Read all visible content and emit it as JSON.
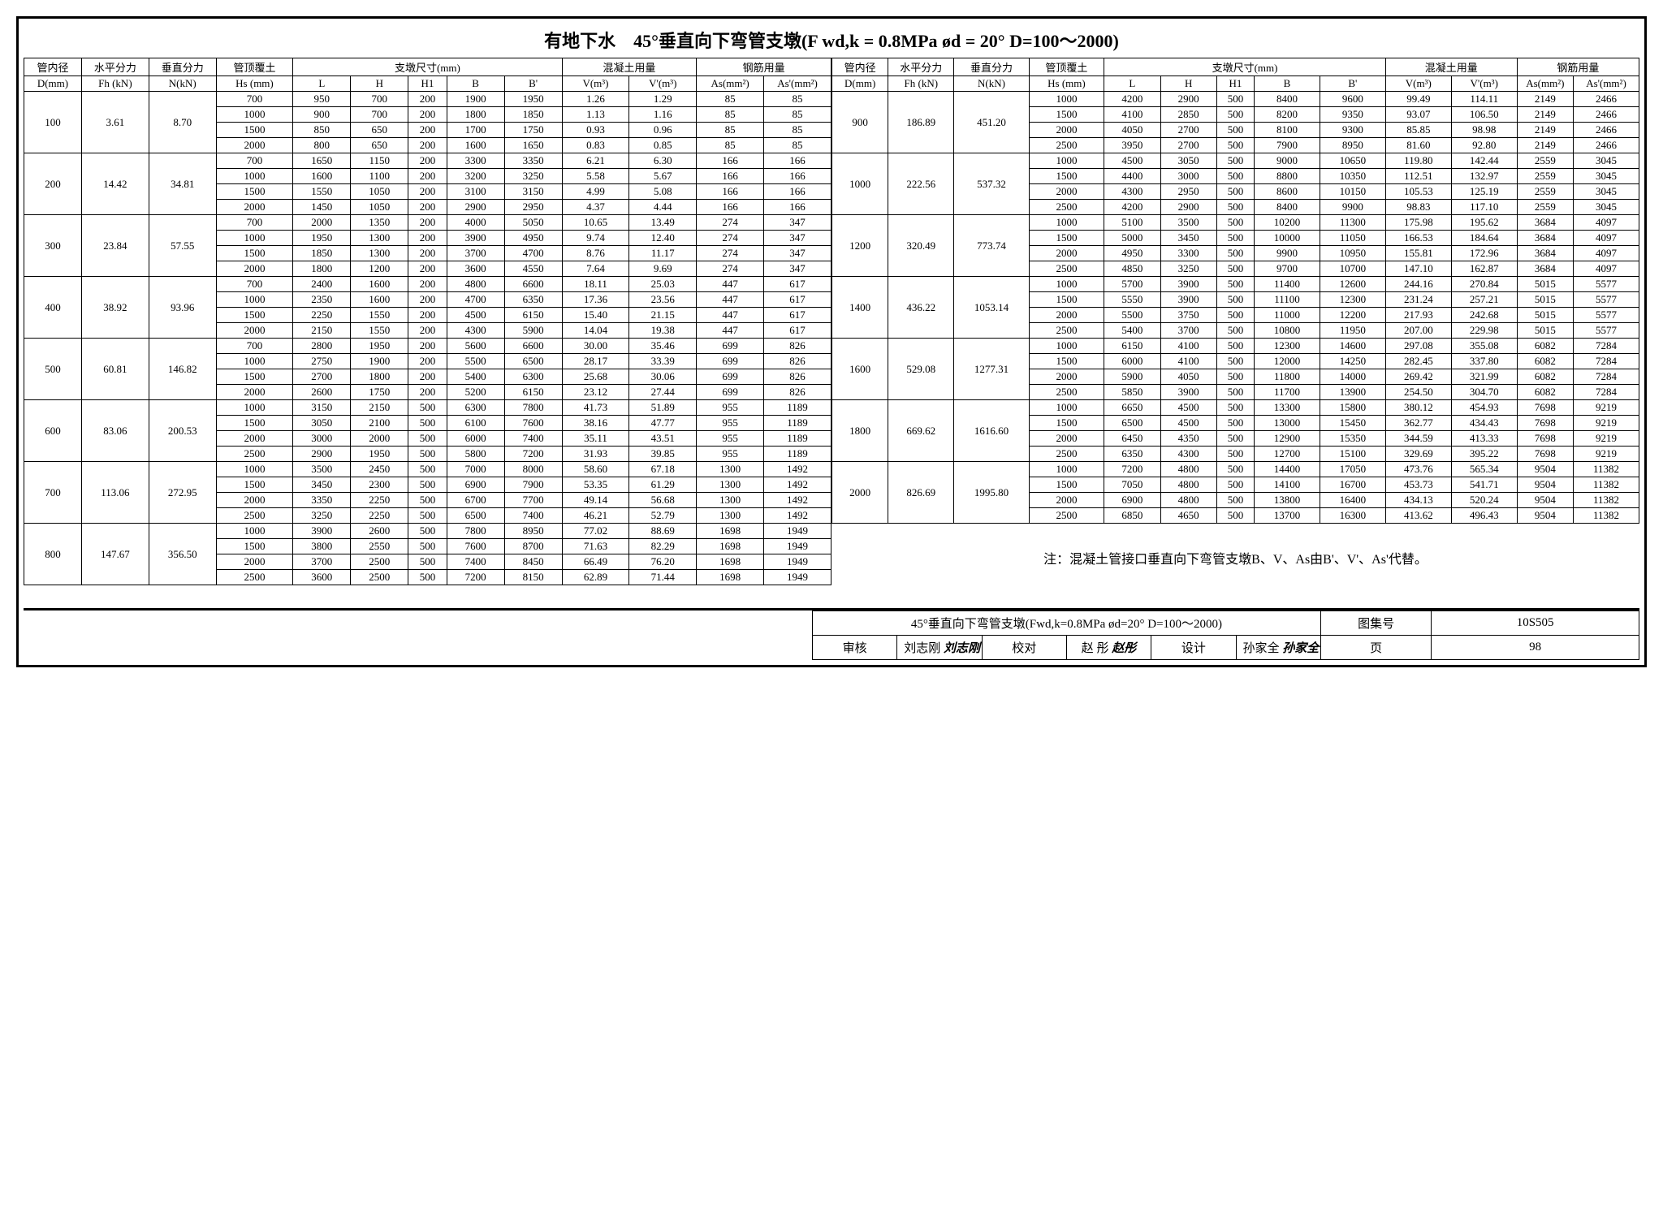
{
  "title": "有地下水　45°垂直向下弯管支墩(F wd,k = 0.8MPa ød = 20° D=100～2000)",
  "headers": {
    "c1": "管内径",
    "c1u": "D(mm)",
    "c2": "水平分力",
    "c2u": "Fh (kN)",
    "c3": "垂直分力",
    "c3u": "N(kN)",
    "c4": "管顶覆土",
    "c4u": "Hs (mm)",
    "c5": "支墩尺寸(mm)",
    "L": "L",
    "H": "H",
    "H1": "H1",
    "B": "B",
    "Bp": "B'",
    "c6": "混凝土用量",
    "V": "V(m³)",
    "Vp": "V'(m³)",
    "c7": "钢筋用量",
    "As": "As(mm²)",
    "Asp": "As'(mm²)"
  },
  "left": [
    {
      "D": "100",
      "Fh": "3.61",
      "N": "8.70",
      "rows": [
        [
          "700",
          "950",
          "700",
          "200",
          "1900",
          "1950",
          "1.26",
          "1.29",
          "85",
          "85"
        ],
        [
          "1000",
          "900",
          "700",
          "200",
          "1800",
          "1850",
          "1.13",
          "1.16",
          "85",
          "85"
        ],
        [
          "1500",
          "850",
          "650",
          "200",
          "1700",
          "1750",
          "0.93",
          "0.96",
          "85",
          "85"
        ],
        [
          "2000",
          "800",
          "650",
          "200",
          "1600",
          "1650",
          "0.83",
          "0.85",
          "85",
          "85"
        ]
      ]
    },
    {
      "D": "200",
      "Fh": "14.42",
      "N": "34.81",
      "rows": [
        [
          "700",
          "1650",
          "1150",
          "200",
          "3300",
          "3350",
          "6.21",
          "6.30",
          "166",
          "166"
        ],
        [
          "1000",
          "1600",
          "1100",
          "200",
          "3200",
          "3250",
          "5.58",
          "5.67",
          "166",
          "166"
        ],
        [
          "1500",
          "1550",
          "1050",
          "200",
          "3100",
          "3150",
          "4.99",
          "5.08",
          "166",
          "166"
        ],
        [
          "2000",
          "1450",
          "1050",
          "200",
          "2900",
          "2950",
          "4.37",
          "4.44",
          "166",
          "166"
        ]
      ]
    },
    {
      "D": "300",
      "Fh": "23.84",
      "N": "57.55",
      "rows": [
        [
          "700",
          "2000",
          "1350",
          "200",
          "4000",
          "5050",
          "10.65",
          "13.49",
          "274",
          "347"
        ],
        [
          "1000",
          "1950",
          "1300",
          "200",
          "3900",
          "4950",
          "9.74",
          "12.40",
          "274",
          "347"
        ],
        [
          "1500",
          "1850",
          "1300",
          "200",
          "3700",
          "4700",
          "8.76",
          "11.17",
          "274",
          "347"
        ],
        [
          "2000",
          "1800",
          "1200",
          "200",
          "3600",
          "4550",
          "7.64",
          "9.69",
          "274",
          "347"
        ]
      ]
    },
    {
      "D": "400",
      "Fh": "38.92",
      "N": "93.96",
      "rows": [
        [
          "700",
          "2400",
          "1600",
          "200",
          "4800",
          "6600",
          "18.11",
          "25.03",
          "447",
          "617"
        ],
        [
          "1000",
          "2350",
          "1600",
          "200",
          "4700",
          "6350",
          "17.36",
          "23.56",
          "447",
          "617"
        ],
        [
          "1500",
          "2250",
          "1550",
          "200",
          "4500",
          "6150",
          "15.40",
          "21.15",
          "447",
          "617"
        ],
        [
          "2000",
          "2150",
          "1550",
          "200",
          "4300",
          "5900",
          "14.04",
          "19.38",
          "447",
          "617"
        ]
      ]
    },
    {
      "D": "500",
      "Fh": "60.81",
      "N": "146.82",
      "rows": [
        [
          "700",
          "2800",
          "1950",
          "200",
          "5600",
          "6600",
          "30.00",
          "35.46",
          "699",
          "826"
        ],
        [
          "1000",
          "2750",
          "1900",
          "200",
          "5500",
          "6500",
          "28.17",
          "33.39",
          "699",
          "826"
        ],
        [
          "1500",
          "2700",
          "1800",
          "200",
          "5400",
          "6300",
          "25.68",
          "30.06",
          "699",
          "826"
        ],
        [
          "2000",
          "2600",
          "1750",
          "200",
          "5200",
          "6150",
          "23.12",
          "27.44",
          "699",
          "826"
        ]
      ]
    },
    {
      "D": "600",
      "Fh": "83.06",
      "N": "200.53",
      "rows": [
        [
          "1000",
          "3150",
          "2150",
          "500",
          "6300",
          "7800",
          "41.73",
          "51.89",
          "955",
          "1189"
        ],
        [
          "1500",
          "3050",
          "2100",
          "500",
          "6100",
          "7600",
          "38.16",
          "47.77",
          "955",
          "1189"
        ],
        [
          "2000",
          "3000",
          "2000",
          "500",
          "6000",
          "7400",
          "35.11",
          "43.51",
          "955",
          "1189"
        ],
        [
          "2500",
          "2900",
          "1950",
          "500",
          "5800",
          "7200",
          "31.93",
          "39.85",
          "955",
          "1189"
        ]
      ]
    },
    {
      "D": "700",
      "Fh": "113.06",
      "N": "272.95",
      "rows": [
        [
          "1000",
          "3500",
          "2450",
          "500",
          "7000",
          "8000",
          "58.60",
          "67.18",
          "1300",
          "1492"
        ],
        [
          "1500",
          "3450",
          "2300",
          "500",
          "6900",
          "7900",
          "53.35",
          "61.29",
          "1300",
          "1492"
        ],
        [
          "2000",
          "3350",
          "2250",
          "500",
          "6700",
          "7700",
          "49.14",
          "56.68",
          "1300",
          "1492"
        ],
        [
          "2500",
          "3250",
          "2250",
          "500",
          "6500",
          "7400",
          "46.21",
          "52.79",
          "1300",
          "1492"
        ]
      ]
    },
    {
      "D": "800",
      "Fh": "147.67",
      "N": "356.50",
      "rows": [
        [
          "1000",
          "3900",
          "2600",
          "500",
          "7800",
          "8950",
          "77.02",
          "88.69",
          "1698",
          "1949"
        ],
        [
          "1500",
          "3800",
          "2550",
          "500",
          "7600",
          "8700",
          "71.63",
          "82.29",
          "1698",
          "1949"
        ],
        [
          "2000",
          "3700",
          "2500",
          "500",
          "7400",
          "8450",
          "66.49",
          "76.20",
          "1698",
          "1949"
        ],
        [
          "2500",
          "3600",
          "2500",
          "500",
          "7200",
          "8150",
          "62.89",
          "71.44",
          "1698",
          "1949"
        ]
      ]
    }
  ],
  "right": [
    {
      "D": "900",
      "Fh": "186.89",
      "N": "451.20",
      "rows": [
        [
          "1000",
          "4200",
          "2900",
          "500",
          "8400",
          "9600",
          "99.49",
          "114.11",
          "2149",
          "2466"
        ],
        [
          "1500",
          "4100",
          "2850",
          "500",
          "8200",
          "9350",
          "93.07",
          "106.50",
          "2149",
          "2466"
        ],
        [
          "2000",
          "4050",
          "2700",
          "500",
          "8100",
          "9300",
          "85.85",
          "98.98",
          "2149",
          "2466"
        ],
        [
          "2500",
          "3950",
          "2700",
          "500",
          "7900",
          "8950",
          "81.60",
          "92.80",
          "2149",
          "2466"
        ]
      ]
    },
    {
      "D": "1000",
      "Fh": "222.56",
      "N": "537.32",
      "rows": [
        [
          "1000",
          "4500",
          "3050",
          "500",
          "9000",
          "10650",
          "119.80",
          "142.44",
          "2559",
          "3045"
        ],
        [
          "1500",
          "4400",
          "3000",
          "500",
          "8800",
          "10350",
          "112.51",
          "132.97",
          "2559",
          "3045"
        ],
        [
          "2000",
          "4300",
          "2950",
          "500",
          "8600",
          "10150",
          "105.53",
          "125.19",
          "2559",
          "3045"
        ],
        [
          "2500",
          "4200",
          "2900",
          "500",
          "8400",
          "9900",
          "98.83",
          "117.10",
          "2559",
          "3045"
        ]
      ]
    },
    {
      "D": "1200",
      "Fh": "320.49",
      "N": "773.74",
      "rows": [
        [
          "1000",
          "5100",
          "3500",
          "500",
          "10200",
          "11300",
          "175.98",
          "195.62",
          "3684",
          "4097"
        ],
        [
          "1500",
          "5000",
          "3450",
          "500",
          "10000",
          "11050",
          "166.53",
          "184.64",
          "3684",
          "4097"
        ],
        [
          "2000",
          "4950",
          "3300",
          "500",
          "9900",
          "10950",
          "155.81",
          "172.96",
          "3684",
          "4097"
        ],
        [
          "2500",
          "4850",
          "3250",
          "500",
          "9700",
          "10700",
          "147.10",
          "162.87",
          "3684",
          "4097"
        ]
      ]
    },
    {
      "D": "1400",
      "Fh": "436.22",
      "N": "1053.14",
      "rows": [
        [
          "1000",
          "5700",
          "3900",
          "500",
          "11400",
          "12600",
          "244.16",
          "270.84",
          "5015",
          "5577"
        ],
        [
          "1500",
          "5550",
          "3900",
          "500",
          "11100",
          "12300",
          "231.24",
          "257.21",
          "5015",
          "5577"
        ],
        [
          "2000",
          "5500",
          "3750",
          "500",
          "11000",
          "12200",
          "217.93",
          "242.68",
          "5015",
          "5577"
        ],
        [
          "2500",
          "5400",
          "3700",
          "500",
          "10800",
          "11950",
          "207.00",
          "229.98",
          "5015",
          "5577"
        ]
      ]
    },
    {
      "D": "1600",
      "Fh": "529.08",
      "N": "1277.31",
      "rows": [
        [
          "1000",
          "6150",
          "4100",
          "500",
          "12300",
          "14600",
          "297.08",
          "355.08",
          "6082",
          "7284"
        ],
        [
          "1500",
          "6000",
          "4100",
          "500",
          "12000",
          "14250",
          "282.45",
          "337.80",
          "6082",
          "7284"
        ],
        [
          "2000",
          "5900",
          "4050",
          "500",
          "11800",
          "14000",
          "269.42",
          "321.99",
          "6082",
          "7284"
        ],
        [
          "2500",
          "5850",
          "3900",
          "500",
          "11700",
          "13900",
          "254.50",
          "304.70",
          "6082",
          "7284"
        ]
      ]
    },
    {
      "D": "1800",
      "Fh": "669.62",
      "N": "1616.60",
      "rows": [
        [
          "1000",
          "6650",
          "4500",
          "500",
          "13300",
          "15800",
          "380.12",
          "454.93",
          "7698",
          "9219"
        ],
        [
          "1500",
          "6500",
          "4500",
          "500",
          "13000",
          "15450",
          "362.77",
          "434.43",
          "7698",
          "9219"
        ],
        [
          "2000",
          "6450",
          "4350",
          "500",
          "12900",
          "15350",
          "344.59",
          "413.33",
          "7698",
          "9219"
        ],
        [
          "2500",
          "6350",
          "4300",
          "500",
          "12700",
          "15100",
          "329.69",
          "395.22",
          "7698",
          "9219"
        ]
      ]
    },
    {
      "D": "2000",
      "Fh": "826.69",
      "N": "1995.80",
      "rows": [
        [
          "1000",
          "7200",
          "4800",
          "500",
          "14400",
          "17050",
          "473.76",
          "565.34",
          "9504",
          "11382"
        ],
        [
          "1500",
          "7050",
          "4800",
          "500",
          "14100",
          "16700",
          "453.73",
          "541.71",
          "9504",
          "11382"
        ],
        [
          "2000",
          "6900",
          "4800",
          "500",
          "13800",
          "16400",
          "434.13",
          "520.24",
          "9504",
          "11382"
        ],
        [
          "2500",
          "6850",
          "4650",
          "500",
          "13700",
          "16300",
          "413.62",
          "496.43",
          "9504",
          "11382"
        ]
      ]
    }
  ],
  "note": "注：混凝土管接口垂直向下弯管支墩B、V、As由B'、V'、As'代替。",
  "footer": {
    "title": "45°垂直向下弯管支墩(Fwd,k=0.8MPa ød=20° D=100～2000)",
    "atlas_label": "图集号",
    "atlas": "10S505",
    "review_label": "审核",
    "review": "刘志刚",
    "review_sig": "刘志刚",
    "check_label": "校对",
    "check": "赵 彤",
    "check_sig": "赵彤",
    "design_label": "设计",
    "design": "孙家全",
    "design_sig": "孙家全",
    "page_label": "页",
    "page": "98"
  }
}
